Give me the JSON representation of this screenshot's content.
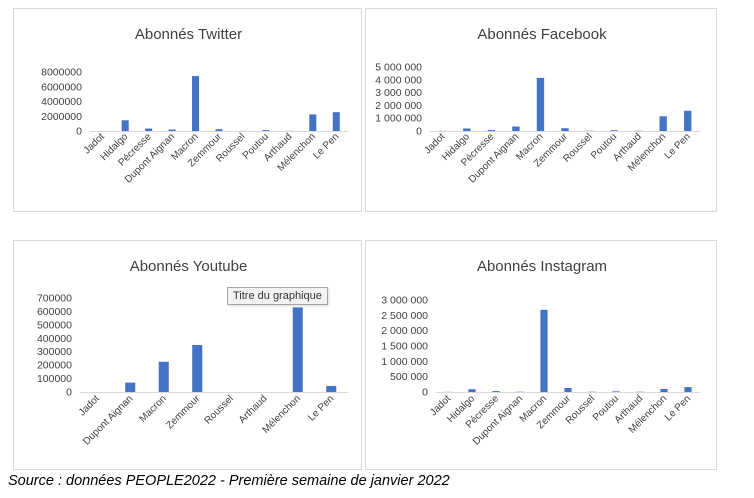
{
  "chart_data": [
    {
      "type": "bar",
      "title": "Abonnés Twitter",
      "categories": [
        "Jadot",
        "Hidalgo",
        "Pécresse",
        "Dupont Aignan",
        "Macron",
        "Zemmour",
        "Roussel",
        "Poutou",
        "Arthaud",
        "Mélenchon",
        "Le Pen"
      ],
      "values": [
        5000,
        1450000,
        330000,
        200000,
        7450000,
        240000,
        20000,
        120000,
        20000,
        2250000,
        2550000
      ],
      "yticks": [
        "0",
        "2000000",
        "4000000",
        "6000000",
        "8000000"
      ],
      "ylim": [
        0,
        8000000
      ],
      "grid": false,
      "legend": "none"
    },
    {
      "type": "bar",
      "title": "Abonnés Facebook",
      "categories": [
        "Jadot",
        "Hidalgo",
        "Pécresse",
        "Dupont Aignan",
        "Macron",
        "Zemmour",
        "Roussel",
        "Poutou",
        "Arthaud",
        "Mélenchon",
        "Le Pen"
      ],
      "values": [
        10000,
        200000,
        80000,
        350000,
        4150000,
        220000,
        20000,
        60000,
        20000,
        1150000,
        1580000
      ],
      "yticks": [
        "0",
        "1 000 000",
        "2 000 000",
        "3 000 000",
        "4 000 000",
        "5 000 000"
      ],
      "ylim": [
        0,
        5000000
      ],
      "grid": false,
      "legend": "none"
    },
    {
      "type": "bar",
      "title": "Abonnés Youtube",
      "categories": [
        "Jadot",
        "Dupont Aignan",
        "Macron",
        "Zemmour",
        "Roussel",
        "Arthaud",
        "Mélenchon",
        "Le Pen"
      ],
      "values": [
        0,
        70000,
        225000,
        350000,
        0,
        0,
        630000,
        45000
      ],
      "yticks": [
        "0",
        "100000",
        "200000",
        "300000",
        "400000",
        "500000",
        "600000",
        "700000"
      ],
      "ylim": [
        0,
        700000
      ],
      "grid": false,
      "legend": "none",
      "tooltip": "Titre du graphique"
    },
    {
      "type": "bar",
      "title": "Abonnés Instagram",
      "categories": [
        "Jadot",
        "Hidalgo",
        "Pécresse",
        "Dupont Aignan",
        "Macron",
        "Zemmour",
        "Roussel",
        "Poutou",
        "Arthaud",
        "Mélenchon",
        "Le Pen"
      ],
      "values": [
        5000,
        90000,
        30000,
        10000,
        2680000,
        130000,
        10000,
        20000,
        10000,
        100000,
        160000
      ],
      "yticks": [
        "0",
        "500 000",
        "1 000 000",
        "1 500 000",
        "2 000 000",
        "2 500 000",
        "3 000 000"
      ],
      "ylim": [
        0,
        3000000
      ],
      "grid": false,
      "legend": "none"
    }
  ],
  "source": "Source : données PEOPLE2022 - Première semaine de janvier 2022",
  "colors": {
    "bar": "#4472c4",
    "text": "#404040",
    "axis": "#d9d9d9"
  }
}
